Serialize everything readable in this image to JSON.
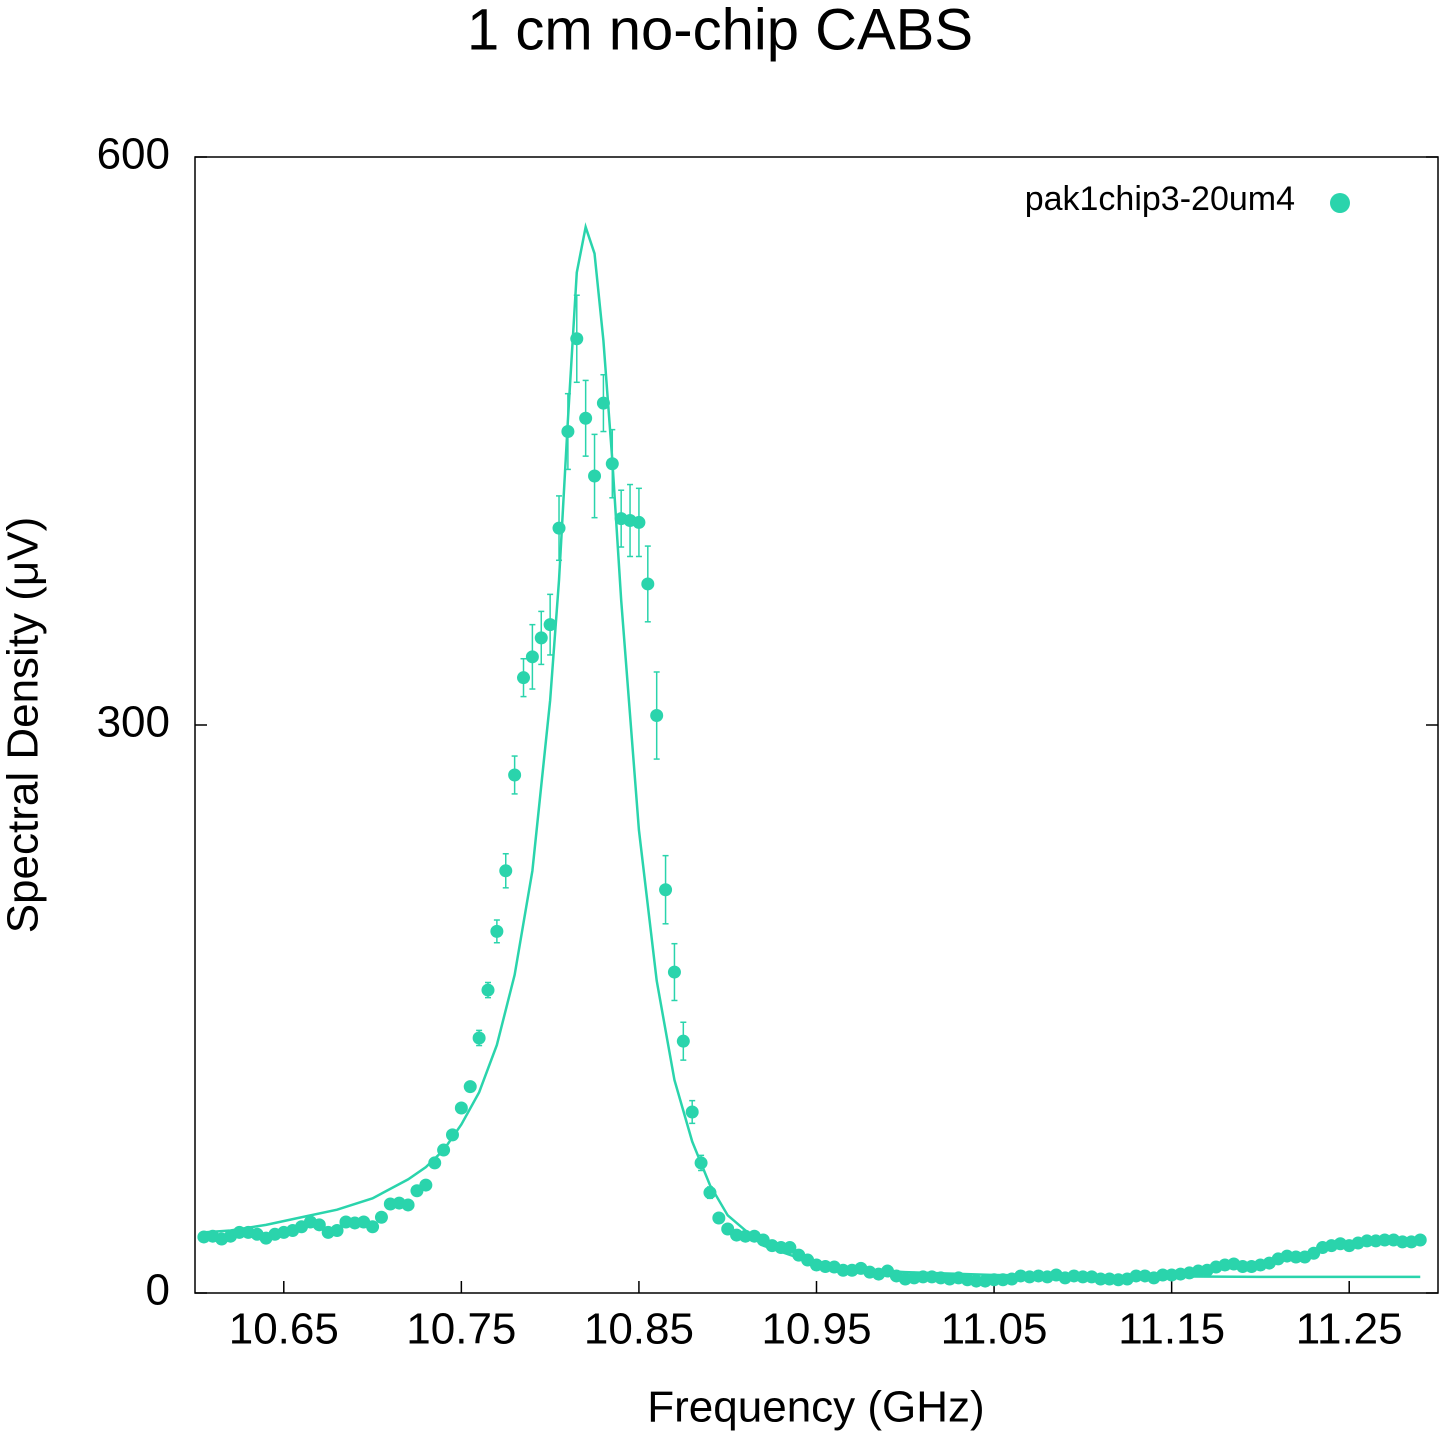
{
  "chart_data": {
    "type": "scatter",
    "title": "1 cm no-chip CABS",
    "x_label": "Frequency (GHz)",
    "y_label": "Spectral Density (μV)",
    "xlim": [
      10.6,
      11.3
    ],
    "ylim": [
      0,
      600
    ],
    "xticks": [
      10.65,
      10.75,
      10.85,
      10.95,
      11.05,
      11.15,
      11.25
    ],
    "yticks": [
      0,
      300,
      600
    ],
    "legend": "top-right",
    "series": [
      {
        "name": "pak1chip3-20um4",
        "color": "#2ad4ac",
        "style": "points",
        "x": [
          10.605,
          10.61,
          10.615,
          10.62,
          10.625,
          10.63,
          10.635,
          10.64,
          10.645,
          10.65,
          10.655,
          10.66,
          10.665,
          10.67,
          10.675,
          10.68,
          10.685,
          10.69,
          10.695,
          10.7,
          10.705,
          10.71,
          10.715,
          10.72,
          10.725,
          10.73,
          10.735,
          10.74,
          10.745,
          10.75,
          10.755,
          10.76,
          10.765,
          10.77,
          10.775,
          10.78,
          10.785,
          10.79,
          10.795,
          10.8,
          10.805,
          10.81,
          10.815,
          10.82,
          10.825,
          10.83,
          10.835,
          10.84,
          10.845,
          10.85,
          10.855,
          10.86,
          10.865,
          10.87,
          10.875,
          10.88,
          10.885,
          10.89,
          10.895,
          10.9,
          10.905,
          10.91,
          10.915,
          10.92,
          10.925,
          10.93,
          10.935,
          10.94,
          10.945,
          10.95,
          10.955,
          10.96,
          10.965,
          10.97,
          10.975,
          10.98,
          10.985,
          10.99,
          10.995,
          11.0,
          11.005,
          11.01,
          11.015,
          11.02,
          11.025,
          11.03,
          11.035,
          11.04,
          11.045,
          11.05,
          11.055,
          11.06,
          11.065,
          11.07,
          11.075,
          11.08,
          11.085,
          11.09,
          11.095,
          11.1,
          11.105,
          11.11,
          11.115,
          11.12,
          11.125,
          11.13,
          11.135,
          11.14,
          11.145,
          11.15,
          11.155,
          11.16,
          11.165,
          11.17,
          11.175,
          11.18,
          11.185,
          11.19,
          11.195,
          11.2,
          11.205,
          11.21,
          11.215,
          11.22,
          11.225,
          11.23,
          11.235,
          11.24,
          11.245,
          11.25,
          11.255,
          11.26,
          11.265,
          11.27,
          11.275,
          11.28,
          11.285,
          11.29
        ],
        "values": [
          29.6,
          30,
          28.5,
          30,
          32,
          32,
          31,
          29,
          31,
          32,
          33,
          35,
          37.5,
          36,
          32,
          33,
          37.5,
          37,
          37.5,
          35,
          40,
          47,
          47.5,
          46.5,
          54,
          57,
          68.7,
          75.5,
          83.5,
          97.7,
          109,
          134.7,
          160,
          191,
          223,
          273.6,
          325,
          336,
          346,
          353,
          404,
          455,
          504,
          462,
          431.5,
          470,
          438,
          409,
          408,
          407,
          374.5,
          305,
          213,
          169.5,
          133,
          95.6,
          68.7,
          53,
          39.6,
          33.8,
          30.6,
          30,
          30,
          28,
          25,
          24,
          24,
          20,
          17.4,
          14.8,
          14,
          13.7,
          12,
          12,
          13,
          11,
          10,
          11.6,
          9,
          7.4,
          8,
          8.5,
          8.5,
          8,
          7.4,
          8,
          7,
          6.3,
          6.3,
          7,
          7,
          7.4,
          9,
          8.5,
          9,
          8.5,
          9.5,
          8,
          9,
          8.5,
          8.5,
          7.4,
          7.4,
          7,
          7.4,
          9,
          9,
          8,
          9.5,
          9.5,
          10,
          10.6,
          11.6,
          12,
          13.7,
          14.8,
          15.3,
          14,
          14,
          14.8,
          15.8,
          18,
          19.5,
          19,
          19,
          21,
          24,
          25,
          26,
          25,
          26.4,
          27.5,
          27.5,
          28,
          28,
          27,
          27,
          28
        ],
        "errors": [
          2,
          2,
          2,
          2,
          2,
          2,
          2,
          2,
          2,
          2,
          2,
          2,
          2,
          2,
          2,
          2,
          2,
          2,
          2,
          2,
          2,
          2,
          2,
          2,
          2,
          2,
          2,
          2,
          2,
          2,
          2,
          4,
          4,
          6,
          9,
          10,
          10,
          17,
          14,
          16,
          17,
          20,
          23,
          20,
          22,
          15,
          18,
          15,
          19,
          18,
          20,
          23,
          18,
          15,
          10,
          6,
          4,
          3,
          2,
          2,
          2,
          2,
          2,
          2,
          2,
          2,
          2,
          2,
          2,
          2,
          2,
          2,
          2,
          2,
          2,
          2,
          2,
          2,
          2,
          2,
          2,
          2,
          2,
          2,
          2,
          2,
          2,
          2,
          2,
          2,
          2,
          2,
          2,
          2,
          2,
          2,
          2,
          2,
          2,
          2,
          2,
          2,
          2,
          2,
          2,
          2,
          2,
          2,
          2,
          2,
          2,
          2,
          2,
          2,
          2,
          2,
          2,
          2,
          2,
          2,
          2,
          2,
          2,
          2,
          2,
          2,
          2,
          2,
          2,
          2,
          2,
          2,
          2,
          2,
          2,
          2,
          2,
          2
        ]
      },
      {
        "color": "#2ad4ac",
        "style": "line",
        "x": [
          10.605,
          10.62,
          10.64,
          10.66,
          10.68,
          10.7,
          10.72,
          10.73,
          10.74,
          10.75,
          10.76,
          10.77,
          10.78,
          10.79,
          10.8,
          10.805,
          10.81,
          10.815,
          10.82,
          10.825,
          10.83,
          10.835,
          10.84,
          10.85,
          10.86,
          10.87,
          10.88,
          10.89,
          10.9,
          10.92,
          10.94,
          10.96,
          10.98,
          11.0,
          11.05,
          11.1,
          11.2,
          11.29
        ],
        "values": [
          32,
          33,
          36,
          40,
          44,
          50,
          60,
          66.5,
          75.5,
          89,
          106,
          131,
          168,
          223,
          313,
          376.6,
          461,
          539,
          563,
          549,
          503,
          440,
          366,
          244.5,
          165,
          112.5,
          80,
          57,
          41,
          25,
          18.5,
          14,
          12,
          11,
          9.5,
          9,
          8.5,
          8.5
        ]
      }
    ]
  }
}
